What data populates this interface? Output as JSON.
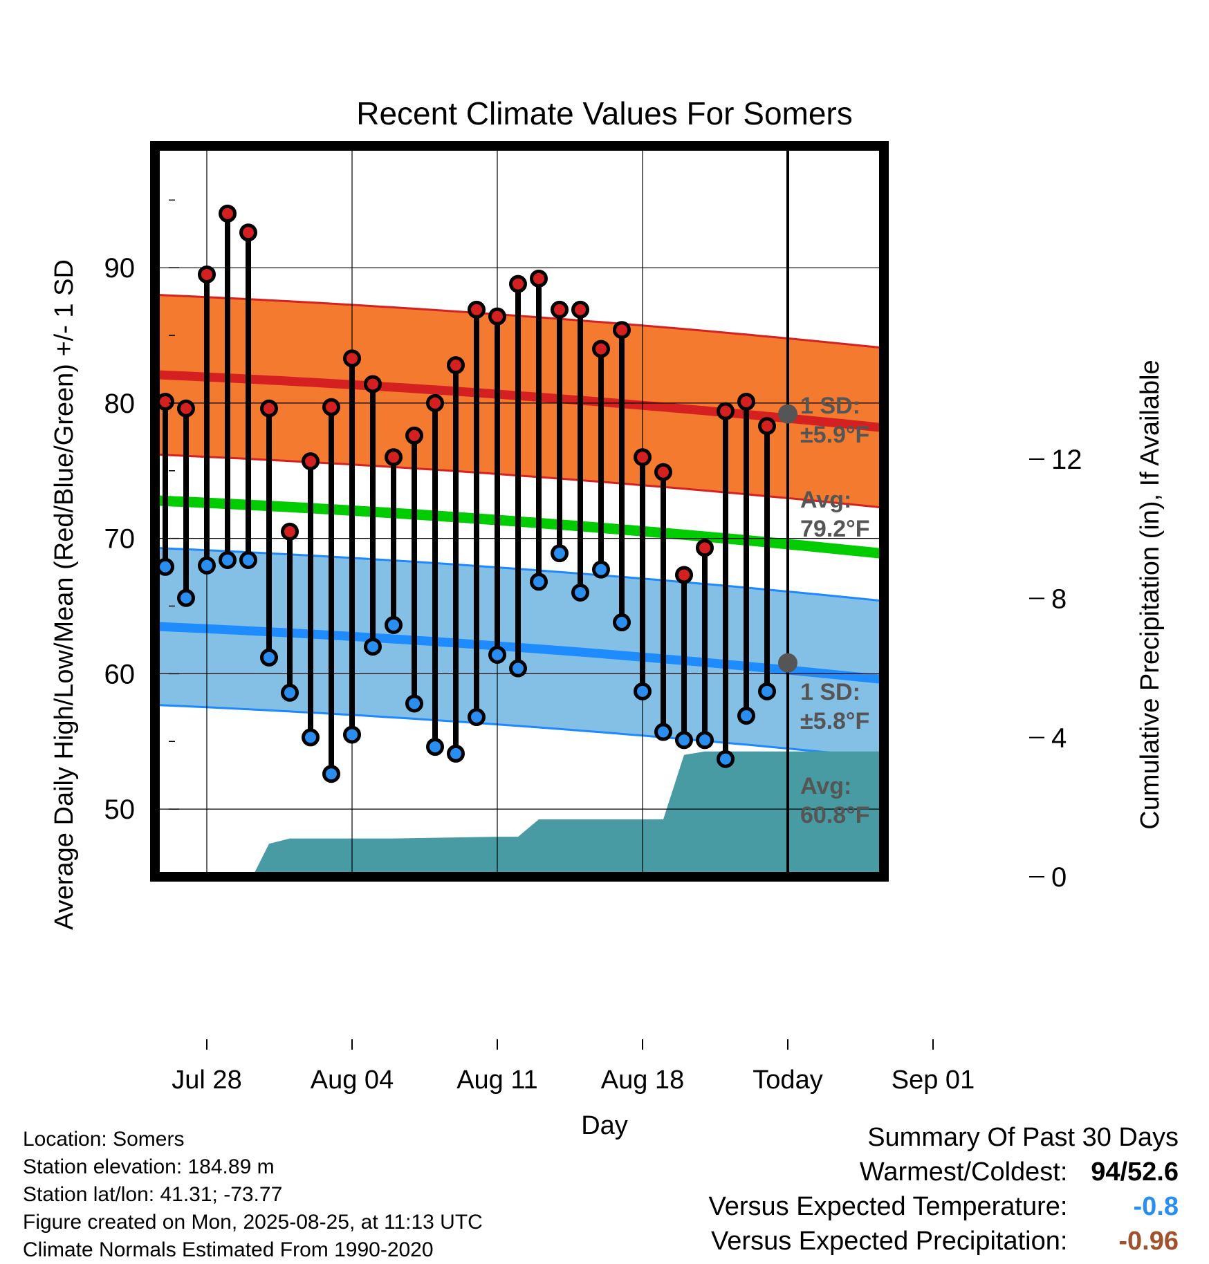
{
  "chart_data": {
    "type": "line",
    "title": "Recent Climate Values For Somers",
    "xlabel": "Day",
    "ylabel": "Average Daily High/Low/Mean (Red/Blue/Green) +/- 1 SD",
    "y2label": "Cumulative Precipitation (in), If Available",
    "ylim": [
      45,
      99
    ],
    "y2lim": [
      0,
      21
    ],
    "yticks": [
      50,
      60,
      70,
      80,
      90
    ],
    "y2ticks": [
      0,
      4,
      8,
      12
    ],
    "xticks": [
      {
        "day": 3,
        "label": "Jul 28"
      },
      {
        "day": 10,
        "label": "Aug 04"
      },
      {
        "day": 17,
        "label": "Aug 11"
      },
      {
        "day": 24,
        "label": "Aug 18"
      },
      {
        "day": 31,
        "label": "Today"
      },
      {
        "day": 38,
        "label": "Sep 01"
      }
    ],
    "today_day": 31,
    "days_label": [
      "30",
      "Days"
    ],
    "highs": [
      80.1,
      79.6,
      89.5,
      94.0,
      92.6,
      79.6,
      70.5,
      75.7,
      79.7,
      83.3,
      81.4,
      76.0,
      77.6,
      80.0,
      82.8,
      86.9,
      86.4,
      88.8,
      89.2,
      86.9,
      86.9,
      84.0,
      85.4,
      76.0,
      74.9,
      67.3,
      69.3,
      79.4,
      80.1,
      78.3
    ],
    "lows": [
      67.9,
      65.6,
      68.0,
      68.4,
      68.4,
      61.2,
      58.6,
      55.3,
      52.6,
      55.5,
      62.0,
      63.6,
      57.8,
      54.6,
      54.1,
      56.8,
      61.4,
      60.4,
      66.8,
      68.9,
      66.0,
      67.7,
      63.8,
      58.7,
      55.7,
      55.1,
      55.1,
      53.7,
      56.9,
      58.7
    ],
    "normals": {
      "high_avg": [
        82.1,
        77.2
      ],
      "high_sd": 5.9,
      "low_avg": [
        63.5,
        58.6
      ],
      "low_sd": 5.8,
      "mean_avg": [
        72.8,
        67.9
      ],
      "days": [
        0.5,
        41.5
      ]
    },
    "precip_cumulative": [
      [
        5.2,
        0
      ],
      [
        6.0,
        0.95
      ],
      [
        7.0,
        1.1
      ],
      [
        12.0,
        1.1
      ],
      [
        17.0,
        1.15
      ],
      [
        18.0,
        1.15
      ],
      [
        19.0,
        1.65
      ],
      [
        25.0,
        1.65
      ],
      [
        26.0,
        3.5
      ],
      [
        27.0,
        3.6
      ],
      [
        41.5,
        3.6
      ]
    ],
    "annotations": {
      "high_sd": [
        "1 SD:",
        "±5.9°F"
      ],
      "high_avg": [
        "Avg:",
        "79.2°F"
      ],
      "low_sd": [
        "1 SD:",
        "±5.8°F"
      ],
      "low_avg": [
        "Avg:",
        "60.8°F"
      ],
      "high_today": 79.2,
      "low_today": 60.8
    },
    "colors": {
      "high_band": "#f47a2f",
      "high_edge": "#d42222",
      "high_line": "#d42020",
      "low_band": "#84c0e6",
      "low_edge": "#1e88ff",
      "low_line": "#1e8cff",
      "mean_line": "#00cc00",
      "precip": "#489ba3",
      "high_dot": "#d42020",
      "low_dot": "#2a8df0",
      "annotation": "#555555"
    },
    "grid": true
  },
  "footer": {
    "location": "Location: Somers",
    "elevation": "Station elevation: 184.89 m",
    "latlon": "Station lat/lon: 41.31; -73.77",
    "created": "Figure created on Mon, 2025-08-25, at 11:13 UTC",
    "normals": "Climate Normals Estimated From 1990-2020"
  },
  "summary": {
    "title": "Summary Of Past 30 Days",
    "warm_cold_label": "Warmest/Coldest:",
    "warm": "94",
    "slash": "/",
    "cold": "52.6",
    "temp_label": "Versus Expected Temperature:",
    "temp_value": "-0.8",
    "temp_color": "#2a8df0",
    "precip_label": "Versus Expected Precipitation:",
    "precip_value": "-0.96",
    "precip_color": "#a0522d"
  }
}
